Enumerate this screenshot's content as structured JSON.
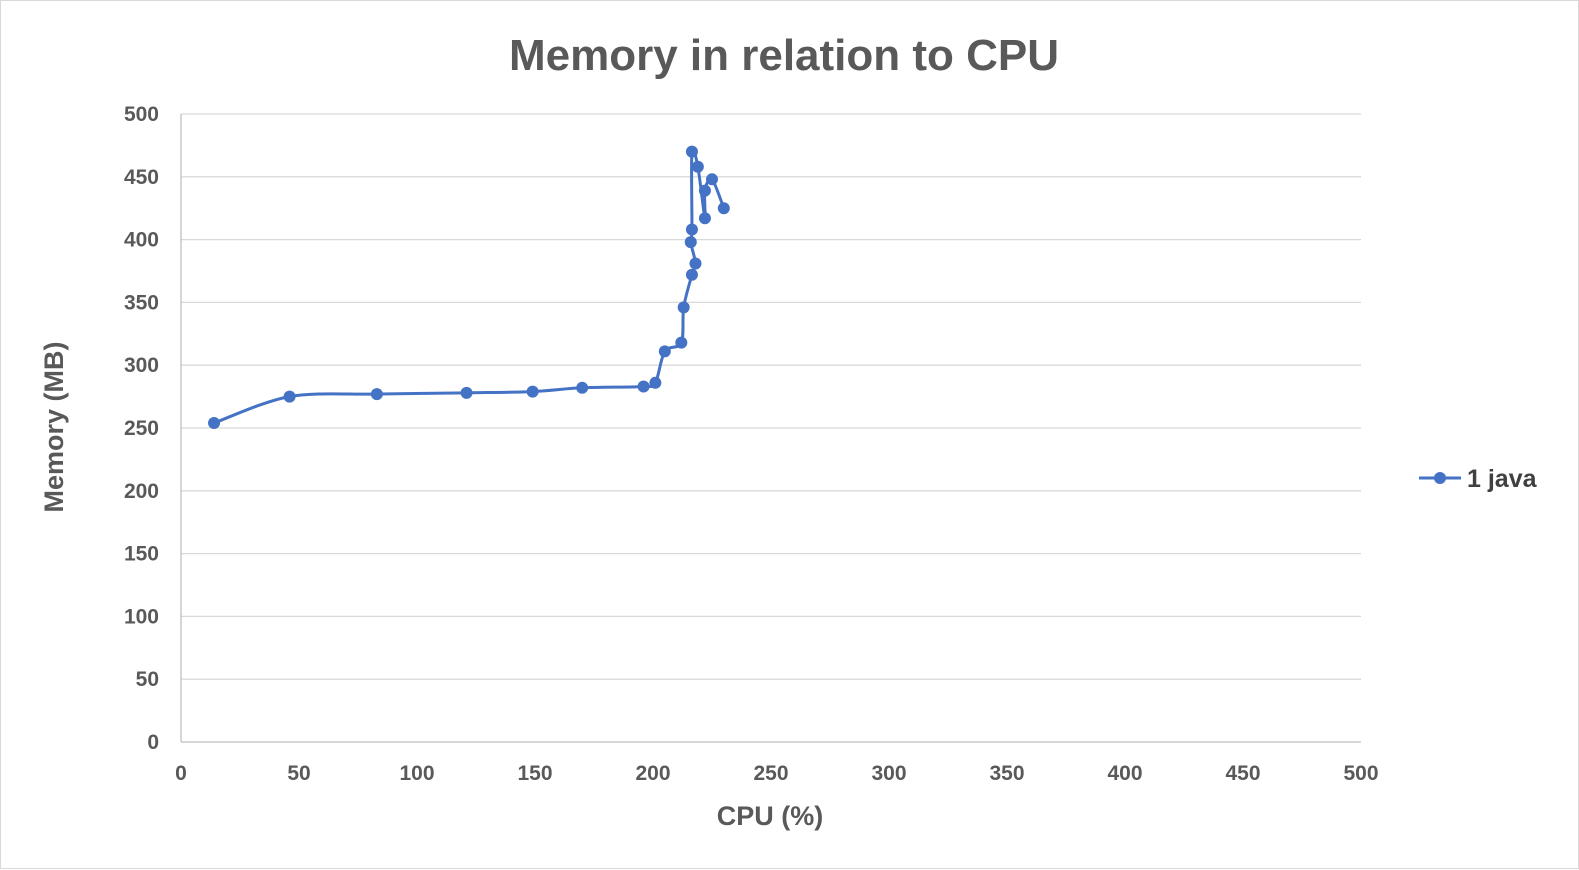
{
  "chart_data": {
    "type": "scatter",
    "title": "Memory in relation to  CPU",
    "xlabel": "CPU (%)",
    "ylabel": "Memory (MB)",
    "xlim": [
      0,
      500
    ],
    "ylim": [
      0,
      500
    ],
    "x_ticks": [
      "0",
      "50",
      "100",
      "150",
      "200",
      "250",
      "300",
      "350",
      "400",
      "450",
      "500"
    ],
    "y_ticks": [
      "0",
      "50",
      "100",
      "150",
      "200",
      "250",
      "300",
      "350",
      "400",
      "450",
      "500"
    ],
    "grid": "horizontal",
    "legend_position": "right",
    "smooth_lines": true,
    "series": [
      {
        "name": "1 java",
        "color": "#4472c4",
        "marker": "circle",
        "points": [
          {
            "x": 14,
            "y": 254
          },
          {
            "x": 46,
            "y": 275
          },
          {
            "x": 83,
            "y": 277
          },
          {
            "x": 121,
            "y": 278
          },
          {
            "x": 149,
            "y": 279
          },
          {
            "x": 170,
            "y": 282
          },
          {
            "x": 196,
            "y": 283
          },
          {
            "x": 201,
            "y": 286
          },
          {
            "x": 205,
            "y": 311
          },
          {
            "x": 212,
            "y": 318
          },
          {
            "x": 213,
            "y": 346
          },
          {
            "x": 216.5,
            "y": 372
          },
          {
            "x": 218,
            "y": 381
          },
          {
            "x": 216,
            "y": 398
          },
          {
            "x": 216.5,
            "y": 408
          },
          {
            "x": 216.5,
            "y": 470
          },
          {
            "x": 219,
            "y": 458
          },
          {
            "x": 222,
            "y": 417
          },
          {
            "x": 222,
            "y": 439
          },
          {
            "x": 225,
            "y": 448
          },
          {
            "x": 230,
            "y": 425
          }
        ]
      }
    ]
  }
}
